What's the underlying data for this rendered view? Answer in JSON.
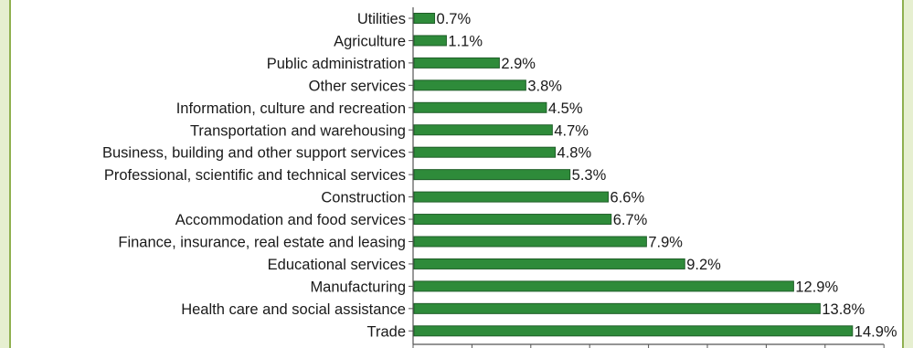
{
  "chart_data": {
    "type": "bar",
    "orientation": "horizontal",
    "categories": [
      "Utilities",
      "Agriculture",
      "Public administration",
      "Other services",
      "Information, culture and recreation",
      "Transportation and warehousing",
      "Business, building and other support services",
      "Professional, scientific and technical services",
      "Construction",
      "Accommodation and food services",
      "Finance, insurance, real estate and leasing",
      "Educational services",
      "Manufacturing",
      "Health care and social assistance",
      "Trade"
    ],
    "values": [
      0.7,
      1.1,
      2.9,
      3.8,
      4.5,
      4.7,
      4.8,
      5.3,
      6.6,
      6.7,
      7.9,
      9.2,
      12.9,
      13.8,
      14.9
    ],
    "value_labels": [
      "0.7%",
      "1.1%",
      "2.9%",
      "3.8%",
      "4.5%",
      "4.7%",
      "4.8%",
      "5.3%",
      "6.6%",
      "6.7%",
      "7.9%",
      "9.2%",
      "12.9%",
      "13.8%",
      "14.9%"
    ],
    "xlim": [
      0,
      16
    ],
    "x_tick_step": 2,
    "bar_color": "#2e8b3a",
    "bar_edge_color": "#1f5e28",
    "grid": false,
    "legend": "none"
  }
}
